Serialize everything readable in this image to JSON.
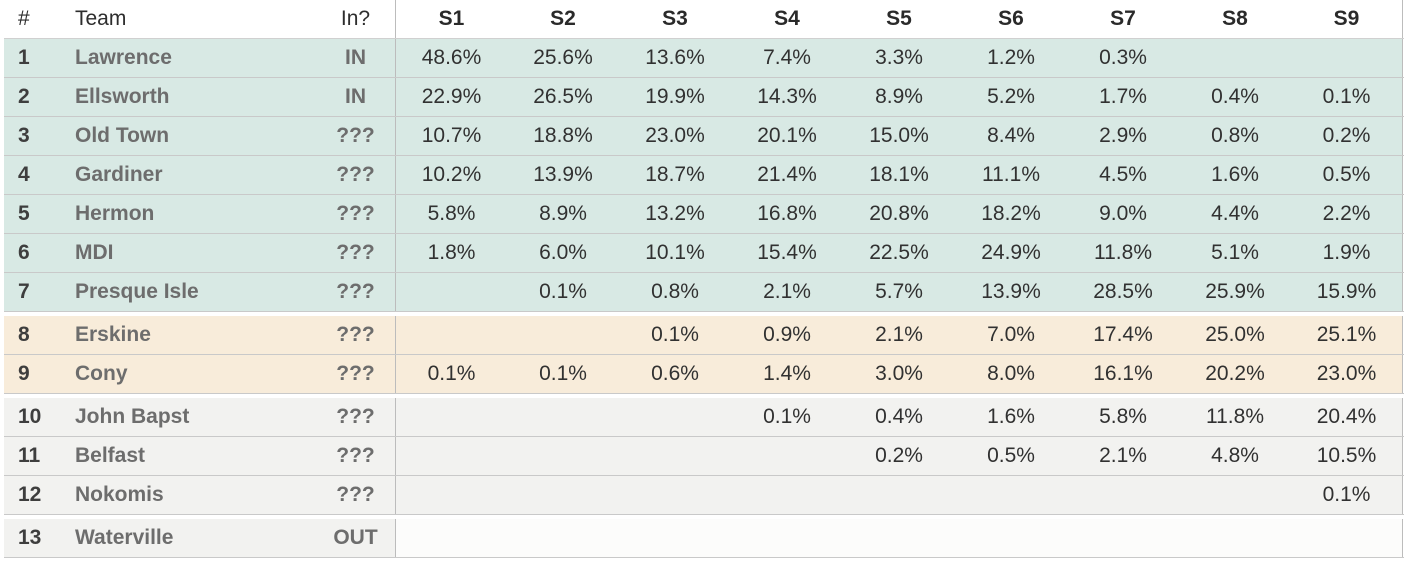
{
  "colors": {
    "group_top": "#d8e9e4",
    "group_bubble": "#f8ecda",
    "group_longshot": "#f2f2f0",
    "group_out_left": "#f2f2f0",
    "group_out_data": "#fcfcfb",
    "row_divider": "#c9c9c9",
    "header_divider": "#d0d0d0",
    "section_divider": "#bcbcbc"
  },
  "chart_data": {
    "type": "table",
    "title": "",
    "columns": [
      "#",
      "Team",
      "In?",
      "S1",
      "S2",
      "S3",
      "S4",
      "S5",
      "S6",
      "S7",
      "S8",
      "S9"
    ],
    "row_groups": [
      {
        "rows": "1-7",
        "color_key": "group_top"
      },
      {
        "rows": "8-9",
        "color_key": "group_bubble"
      },
      {
        "rows": "10-12",
        "color_key": "group_longshot"
      },
      {
        "rows": "13",
        "color_key": "group_out"
      }
    ],
    "rows": [
      {
        "rank": "1",
        "team": "Lawrence",
        "status": "IN",
        "group": "top",
        "seeds": [
          "48.6%",
          "25.6%",
          "13.6%",
          "7.4%",
          "3.3%",
          "1.2%",
          "0.3%",
          "",
          ""
        ]
      },
      {
        "rank": "2",
        "team": "Ellsworth",
        "status": "IN",
        "group": "top",
        "seeds": [
          "22.9%",
          "26.5%",
          "19.9%",
          "14.3%",
          "8.9%",
          "5.2%",
          "1.7%",
          "0.4%",
          "0.1%"
        ]
      },
      {
        "rank": "3",
        "team": "Old Town",
        "status": "???",
        "group": "top",
        "seeds": [
          "10.7%",
          "18.8%",
          "23.0%",
          "20.1%",
          "15.0%",
          "8.4%",
          "2.9%",
          "0.8%",
          "0.2%"
        ]
      },
      {
        "rank": "4",
        "team": "Gardiner",
        "status": "???",
        "group": "top",
        "seeds": [
          "10.2%",
          "13.9%",
          "18.7%",
          "21.4%",
          "18.1%",
          "11.1%",
          "4.5%",
          "1.6%",
          "0.5%"
        ]
      },
      {
        "rank": "5",
        "team": "Hermon",
        "status": "???",
        "group": "top",
        "seeds": [
          "5.8%",
          "8.9%",
          "13.2%",
          "16.8%",
          "20.8%",
          "18.2%",
          "9.0%",
          "4.4%",
          "2.2%"
        ]
      },
      {
        "rank": "6",
        "team": "MDI",
        "status": "???",
        "group": "top",
        "seeds": [
          "1.8%",
          "6.0%",
          "10.1%",
          "15.4%",
          "22.5%",
          "24.9%",
          "11.8%",
          "5.1%",
          "1.9%"
        ]
      },
      {
        "rank": "7",
        "team": "Presque Isle",
        "status": "???",
        "group": "top",
        "seeds": [
          "",
          "0.1%",
          "0.8%",
          "2.1%",
          "5.7%",
          "13.9%",
          "28.5%",
          "25.9%",
          "15.9%"
        ]
      },
      {
        "rank": "8",
        "team": "Erskine",
        "status": "???",
        "group": "bubble",
        "seeds": [
          "",
          "",
          "0.1%",
          "0.9%",
          "2.1%",
          "7.0%",
          "17.4%",
          "25.0%",
          "25.1%"
        ]
      },
      {
        "rank": "9",
        "team": "Cony",
        "status": "???",
        "group": "bubble",
        "seeds": [
          "0.1%",
          "0.1%",
          "0.6%",
          "1.4%",
          "3.0%",
          "8.0%",
          "16.1%",
          "20.2%",
          "23.0%"
        ]
      },
      {
        "rank": "10",
        "team": "John Bapst",
        "status": "???",
        "group": "longshot",
        "seeds": [
          "",
          "",
          "",
          "0.1%",
          "0.4%",
          "1.6%",
          "5.8%",
          "11.8%",
          "20.4%"
        ]
      },
      {
        "rank": "11",
        "team": "Belfast",
        "status": "???",
        "group": "longshot",
        "seeds": [
          "",
          "",
          "",
          "",
          "0.2%",
          "0.5%",
          "2.1%",
          "4.8%",
          "10.5%"
        ]
      },
      {
        "rank": "12",
        "team": "Nokomis",
        "status": "???",
        "group": "longshot",
        "seeds": [
          "",
          "",
          "",
          "",
          "",
          "",
          "",
          "",
          "0.1%"
        ]
      },
      {
        "rank": "13",
        "team": "Waterville",
        "status": "OUT",
        "group": "out",
        "seeds": [
          "",
          "",
          "",
          "",
          "",
          "",
          "",
          "",
          ""
        ]
      }
    ]
  }
}
